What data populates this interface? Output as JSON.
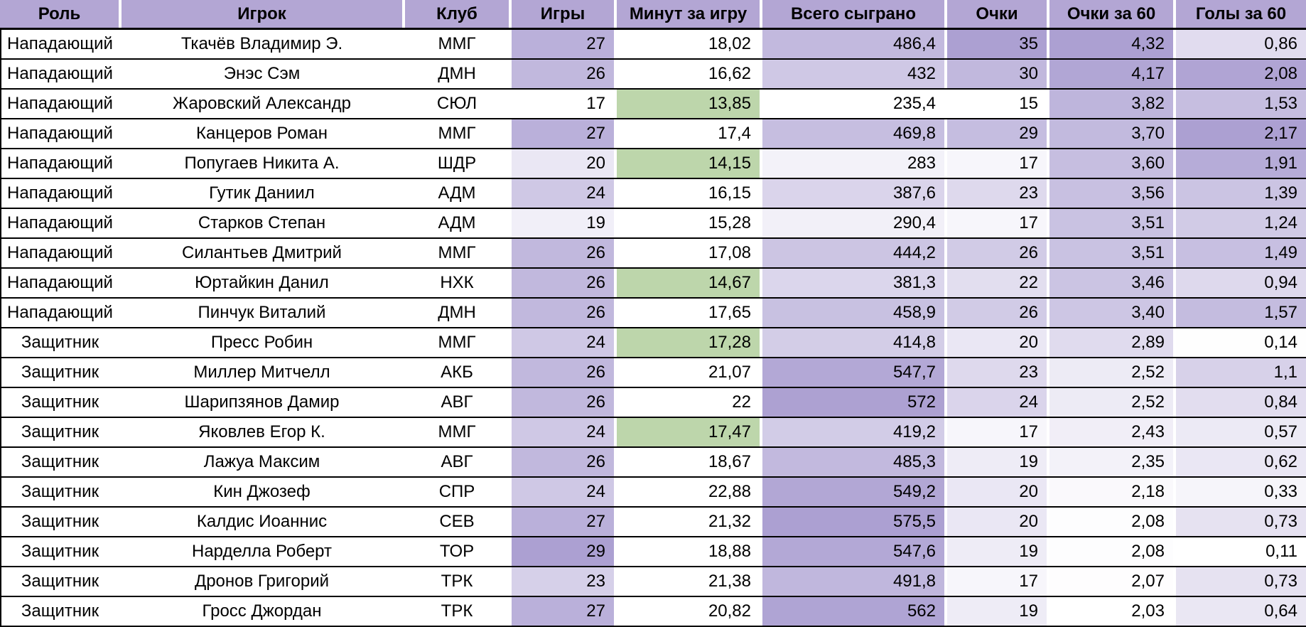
{
  "colors": {
    "header_bg": "#b3a6d4",
    "scale_max": "#aca0d2",
    "green_highlight": "#bdd6ab",
    "border": "#000000",
    "grid_separator": "#ffffff",
    "text": "#000000"
  },
  "table": {
    "columns": [
      "Роль",
      "Игрок",
      "Клуб",
      "Игры",
      "Минут за игру",
      "Всего сыграно",
      "Очки",
      "Очки за 60",
      "Голы за 60"
    ],
    "rows": [
      [
        "Нападающий",
        "Ткачёв Владимир Э.",
        "ММГ",
        "27",
        "18,02",
        "486,4",
        "35",
        "4,32",
        "0,86"
      ],
      [
        "Нападающий",
        "Энэс Сэм",
        "ДМН",
        "26",
        "16,62",
        "432",
        "30",
        "4,17",
        "2,08"
      ],
      [
        "Нападающий",
        "Жаровский Александр",
        "СЮЛ",
        "17",
        "13,85",
        "235,4",
        "15",
        "3,82",
        "1,53"
      ],
      [
        "Нападающий",
        "Канцеров Роман",
        "ММГ",
        "27",
        "17,4",
        "469,8",
        "29",
        "3,70",
        "2,17"
      ],
      [
        "Нападающий",
        "Попугаев Никита А.",
        "ШДР",
        "20",
        "14,15",
        "283",
        "17",
        "3,60",
        "1,91"
      ],
      [
        "Нападающий",
        "Гутик Даниил",
        "АДМ",
        "24",
        "16,15",
        "387,6",
        "23",
        "3,56",
        "1,39"
      ],
      [
        "Нападающий",
        "Старков Степан",
        "АДМ",
        "19",
        "15,28",
        "290,4",
        "17",
        "3,51",
        "1,24"
      ],
      [
        "Нападающий",
        "Силантьев Дмитрий",
        "ММГ",
        "26",
        "17,08",
        "444,2",
        "26",
        "3,51",
        "1,49"
      ],
      [
        "Нападающий",
        "Юртайкин Данил",
        "НХК",
        "26",
        "14,67",
        "381,3",
        "22",
        "3,46",
        "0,94"
      ],
      [
        "Нападающий",
        "Пинчук Виталий",
        "ДМН",
        "26",
        "17,65",
        "458,9",
        "26",
        "3,40",
        "1,57"
      ],
      [
        "Защитник",
        "Пресс Робин",
        "ММГ",
        "24",
        "17,28",
        "414,8",
        "20",
        "2,89",
        "0,14"
      ],
      [
        "Защитник",
        "Миллер Митчелл",
        "АКБ",
        "26",
        "21,07",
        "547,7",
        "23",
        "2,52",
        "1,1"
      ],
      [
        "Защитник",
        "Шарипзянов Дамир",
        "АВГ",
        "26",
        "22",
        "572",
        "24",
        "2,52",
        "0,84"
      ],
      [
        "Защитник",
        "Яковлев Егор К.",
        "ММГ",
        "24",
        "17,47",
        "419,2",
        "17",
        "2,43",
        "0,57"
      ],
      [
        "Защитник",
        "Лажуа Максим",
        "АВГ",
        "26",
        "18,67",
        "485,3",
        "19",
        "2,35",
        "0,62"
      ],
      [
        "Защитник",
        "Кин Джозеф",
        "СПР",
        "24",
        "22,88",
        "549,2",
        "20",
        "2,18",
        "0,33"
      ],
      [
        "Защитник",
        "Калдис Иоаннис",
        "СЕВ",
        "27",
        "21,32",
        "575,5",
        "20",
        "2,08",
        "0,73"
      ],
      [
        "Защитник",
        "Нарделла Роберт",
        "ТОР",
        "29",
        "18,88",
        "547,6",
        "19",
        "2,08",
        "0,11"
      ],
      [
        "Защитник",
        "Дронов Григорий",
        "ТРК",
        "23",
        "21,38",
        "491,8",
        "17",
        "2,07",
        "0,73"
      ],
      [
        "Защитник",
        "Гросс Джордан",
        "ТРК",
        "27",
        "20,82",
        "562",
        "19",
        "2,03",
        "0,64"
      ]
    ]
  },
  "conditional_formatting": {
    "scales": {
      "3": {
        "min": 17,
        "max": 29
      },
      "5": {
        "min": 235.4,
        "max": 575.5
      },
      "6": {
        "min": 15,
        "max": 35
      },
      "7": {
        "min": 2.03,
        "max": 4.32
      },
      "8": {
        "min": 0.11,
        "max": 2.17
      }
    },
    "green_cells": [
      [
        2,
        4
      ],
      [
        4,
        4
      ],
      [
        8,
        4
      ],
      [
        10,
        4
      ],
      [
        13,
        4
      ]
    ]
  }
}
